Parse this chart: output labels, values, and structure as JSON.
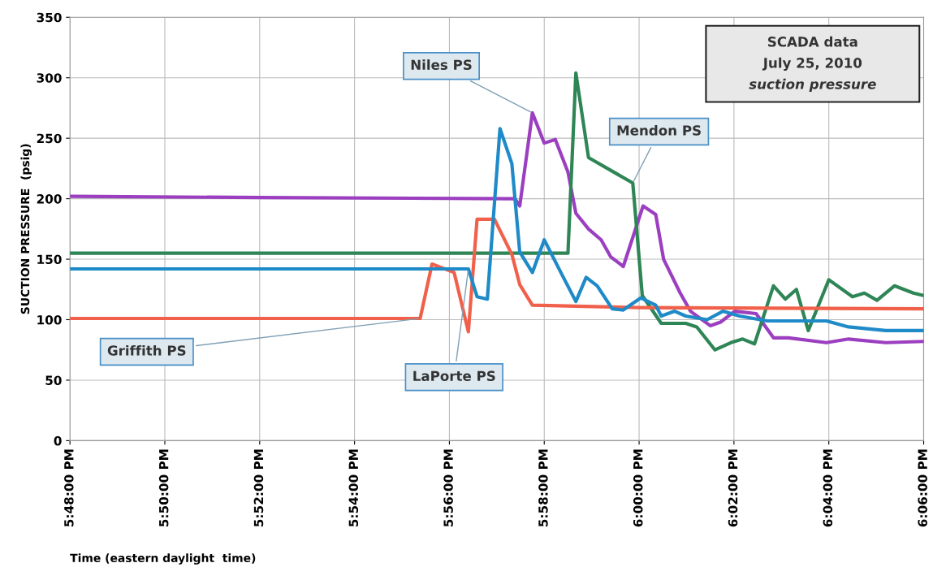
{
  "chart_data": {
    "type": "line",
    "xlabel": "Time (eastern daylight  time)",
    "ylabel": "SUCTION PRESSURE  (psig)",
    "annotations": [
      "SCADA data",
      "July 25, 2010",
      "suction pressure"
    ],
    "series": [
      {
        "name": "Niles PS",
        "color": "#9b3fc0",
        "x": [
          "2010-07-25T17:48:00",
          "2010-07-25T17:52:00",
          "2010-07-25T17:57:23",
          "2010-07-25T17:57:29",
          "2010-07-25T17:57:45",
          "2010-07-25T17:58:00",
          "2010-07-25T17:58:14",
          "2010-07-25T17:58:30",
          "2010-07-25T17:58:40",
          "2010-07-25T17:58:56",
          "2010-07-25T17:59:12",
          "2010-07-25T17:59:24",
          "2010-07-25T17:59:40",
          "2010-07-25T18:00:05",
          "2010-07-25T18:00:21",
          "2010-07-25T18:00:31",
          "2010-07-25T18:00:52",
          "2010-07-25T18:01:05",
          "2010-07-25T18:01:30",
          "2010-07-25T18:01:43",
          "2010-07-25T18:02:01",
          "2010-07-25T18:02:28",
          "2010-07-25T18:02:50",
          "2010-07-25T18:03:09",
          "2010-07-25T18:03:57",
          "2010-07-25T18:04:25",
          "2010-07-25T18:05:12",
          "2010-07-25T18:06:00"
        ],
        "values": [
          202,
          201,
          200,
          194,
          271,
          246,
          249,
          222,
          188,
          175,
          166,
          152,
          144,
          194,
          187,
          150,
          122,
          107,
          95,
          98,
          107,
          105,
          85,
          85,
          81,
          84,
          81,
          82
        ]
      },
      {
        "name": "Mendon PS",
        "color": "#2e8555",
        "x": [
          "2010-07-25T17:48:00",
          "2010-07-25T17:58:30",
          "2010-07-25T17:58:40",
          "2010-07-25T17:58:56",
          "2010-07-25T17:59:52",
          "2010-07-25T18:00:04",
          "2010-07-25T18:00:28",
          "2010-07-25T18:00:59",
          "2010-07-25T18:01:13",
          "2010-07-25T18:01:36",
          "2010-07-25T18:01:56",
          "2010-07-25T18:02:11",
          "2010-07-25T18:02:26",
          "2010-07-25T18:02:50",
          "2010-07-25T18:03:05",
          "2010-07-25T18:03:19",
          "2010-07-25T18:03:34",
          "2010-07-25T18:04:00",
          "2010-07-25T18:04:30",
          "2010-07-25T18:04:45",
          "2010-07-25T18:05:01",
          "2010-07-25T18:05:23",
          "2010-07-25T18:05:47",
          "2010-07-25T18:06:00"
        ],
        "values": [
          155,
          155,
          304,
          234,
          213,
          120,
          97,
          97,
          94,
          75,
          81,
          84,
          80,
          128,
          117,
          125,
          91,
          133,
          119,
          122,
          116,
          128,
          122,
          120
        ]
      },
      {
        "name": "Griffith PS",
        "color": "#f0604a",
        "x": [
          "2010-07-25T17:48:00",
          "2010-07-25T17:55:23",
          "2010-07-25T17:55:38",
          "2010-07-25T17:56:06",
          "2010-07-25T17:56:24",
          "2010-07-25T17:56:35",
          "2010-07-25T17:56:57",
          "2010-07-25T17:57:19",
          "2010-07-25T17:57:29",
          "2010-07-25T17:57:45",
          "2010-07-25T18:00:00",
          "2010-07-25T18:06:00"
        ],
        "values": [
          101,
          101,
          146,
          139,
          90,
          183,
          183,
          154,
          129,
          112,
          110,
          109
        ]
      },
      {
        "name": "LaPorte PS",
        "color": "#1f8ac8",
        "x": [
          "2010-07-25T17:48:00",
          "2010-07-25T17:56:24",
          "2010-07-25T17:56:35",
          "2010-07-25T17:56:48",
          "2010-07-25T17:57:04",
          "2010-07-25T17:57:19",
          "2010-07-25T17:57:29",
          "2010-07-25T17:57:45",
          "2010-07-25T17:58:00",
          "2010-07-25T17:58:21",
          "2010-07-25T17:58:40",
          "2010-07-25T17:58:53",
          "2010-07-25T17:59:07",
          "2010-07-25T17:59:26",
          "2010-07-25T17:59:40",
          "2010-07-25T18:00:02",
          "2010-07-25T18:00:21",
          "2010-07-25T18:00:28",
          "2010-07-25T18:00:45",
          "2010-07-25T18:00:59",
          "2010-07-25T18:01:26",
          "2010-07-25T18:01:46",
          "2010-07-25T18:02:07",
          "2010-07-25T18:02:42",
          "2010-07-25T18:03:57",
          "2010-07-25T18:04:25",
          "2010-07-25T18:05:12",
          "2010-07-25T18:06:00"
        ],
        "values": [
          142,
          142,
          119,
          117,
          258,
          229,
          156,
          139,
          166,
          139,
          115,
          135,
          128,
          109,
          108,
          118,
          112,
          103,
          107,
          103,
          100,
          107,
          103,
          99,
          99,
          94,
          91,
          91
        ]
      }
    ],
    "xlim": [
      "2010-07-25T17:48",
      "2010-07-25T18:06"
    ],
    "xticks": [
      {
        "value": "2010-07-25T17:48",
        "label": "5:48:00 PM"
      },
      {
        "value": "2010-07-25T17:50",
        "label": "5:50:00 PM"
      },
      {
        "value": "2010-07-25T17:52",
        "label": "5:52:00 PM"
      },
      {
        "value": "2010-07-25T17:54",
        "label": "5:54:00 PM"
      },
      {
        "value": "2010-07-25T17:56",
        "label": "5:56:00 PM"
      },
      {
        "value": "2010-07-25T17:58",
        "label": "5:58:00 PM"
      },
      {
        "value": "2010-07-25T18:00",
        "label": "6:00:00 PM"
      },
      {
        "value": "2010-07-25T18:02",
        "label": "6:02:00 PM"
      },
      {
        "value": "2010-07-25T18:04",
        "label": "6:04:00 PM"
      },
      {
        "value": "2010-07-25T18:06",
        "label": "6:06:00 PM"
      }
    ],
    "ylim": [
      0,
      350
    ],
    "yticks": [
      0,
      50,
      100,
      150,
      200,
      250,
      300,
      350
    ],
    "grid": true,
    "legend": false,
    "line_style": "solid",
    "marker": "none"
  }
}
